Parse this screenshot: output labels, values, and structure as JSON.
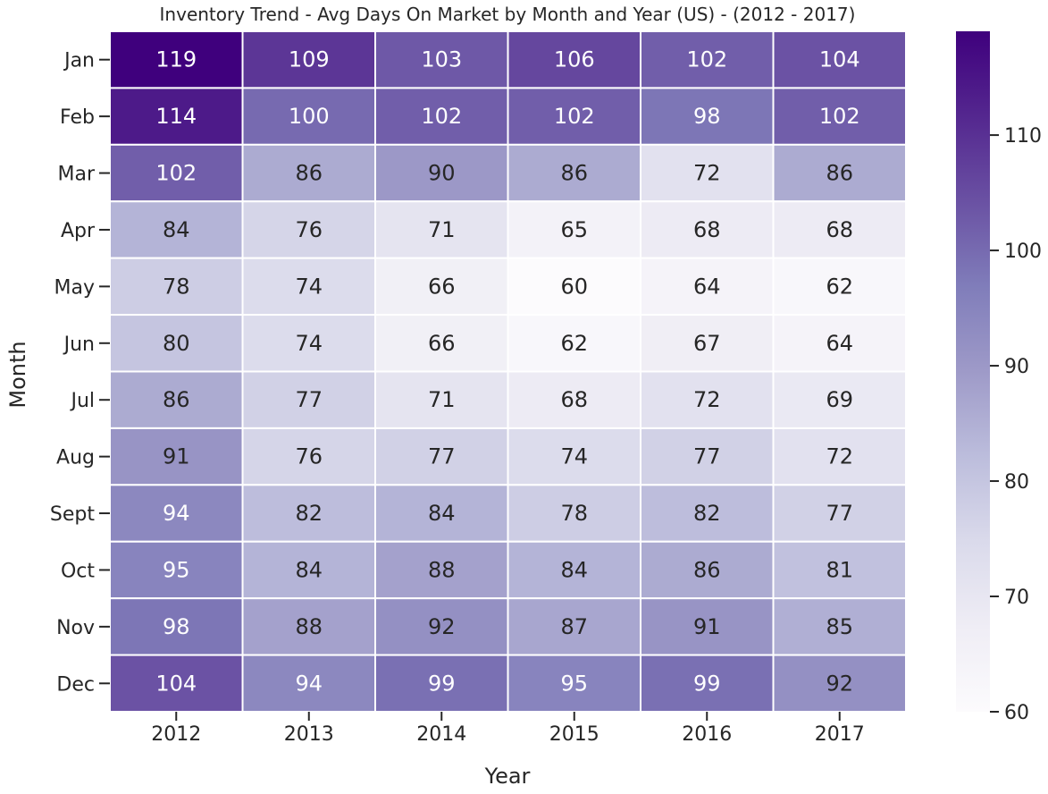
{
  "chart_data": {
    "type": "heatmap",
    "title": "Inventory Trend - Avg Days On Market by Month and Year (US) - (2012 - 2017)",
    "xlabel": "Year",
    "ylabel": "Month",
    "x_categories": [
      "2012",
      "2013",
      "2014",
      "2015",
      "2016",
      "2017"
    ],
    "y_categories": [
      "Jan",
      "Feb",
      "Mar",
      "Apr",
      "May",
      "Jun",
      "Jul",
      "Aug",
      "Sept",
      "Oct",
      "Nov",
      "Dec"
    ],
    "values": [
      [
        119,
        109,
        103,
        106,
        102,
        104
      ],
      [
        114,
        100,
        102,
        102,
        98,
        102
      ],
      [
        102,
        86,
        90,
        86,
        72,
        86
      ],
      [
        84,
        76,
        71,
        65,
        68,
        68
      ],
      [
        78,
        74,
        66,
        60,
        64,
        62
      ],
      [
        80,
        74,
        66,
        62,
        67,
        64
      ],
      [
        86,
        77,
        71,
        68,
        72,
        69
      ],
      [
        91,
        76,
        77,
        74,
        77,
        72
      ],
      [
        94,
        82,
        84,
        78,
        82,
        77
      ],
      [
        95,
        84,
        88,
        84,
        86,
        81
      ],
      [
        98,
        88,
        92,
        87,
        91,
        85
      ],
      [
        104,
        94,
        99,
        95,
        99,
        92
      ]
    ],
    "colorbar": {
      "range": [
        60,
        119
      ],
      "ticks": [
        60,
        70,
        80,
        90,
        100,
        110
      ],
      "colormap": "Purples",
      "position": "right"
    },
    "grid": false,
    "annotated": true
  }
}
